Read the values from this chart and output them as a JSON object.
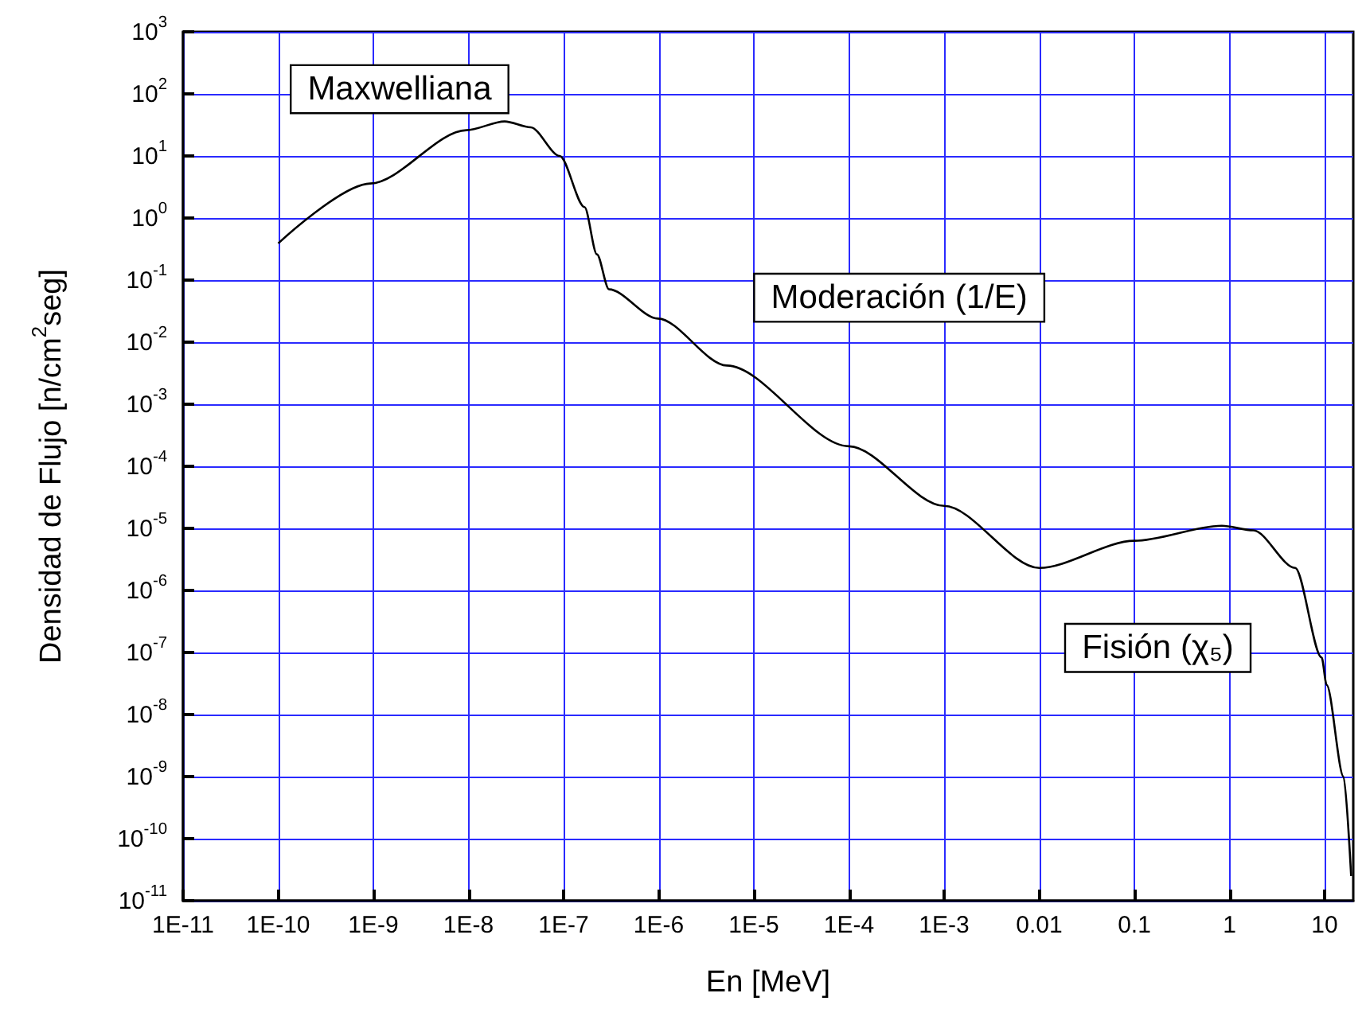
{
  "chart_data": {
    "type": "line",
    "xlabel": "En [MeV]",
    "ylabel": "Densidad de Flujo [n/cm$^{2}$seg]",
    "x": [
      1e-10,
      9.3e-10,
      9.5e-09,
      2.4e-08,
      4.5e-08,
      9.1e-08,
      1.66e-07,
      2.24e-07,
      3e-07,
      9.8e-07,
      5.2e-06,
      0.0001,
      0.001,
      0.01,
      0.1,
      0.83,
      1.78,
      4.9,
      9.3,
      10.5,
      15.8,
      19
    ],
    "series": [
      {
        "color": "#000000",
        "values": [
          0.39,
          3.6,
          26,
          36,
          29,
          10,
          1.5,
          0.26,
          0.071,
          0.024,
          0.0042,
          0.00021,
          2.3e-05,
          2.3e-06,
          6.3e-06,
          1.1e-05,
          9.3e-06,
          2.3e-06,
          8.3e-08,
          3e-08,
          1e-09,
          2.5e-11
        ]
      }
    ],
    "log": "xy",
    "grid": true,
    "marker": "none",
    "line_style": "solid",
    "xlim": [
      1e-11,
      20
    ],
    "ylim": [
      1e-11,
      1000
    ],
    "xticks": [
      {
        "value": 1e-11,
        "label": "1E-11"
      },
      {
        "value": 1e-10,
        "label": "1E-10"
      },
      {
        "value": 1e-09,
        "label": "1E-9"
      },
      {
        "value": 1e-08,
        "label": "1E-8"
      },
      {
        "value": 1e-07,
        "label": "1E-7"
      },
      {
        "value": 1e-06,
        "label": "1E-6"
      },
      {
        "value": 1e-05,
        "label": "1E-5"
      },
      {
        "value": 0.0001,
        "label": "1E-4"
      },
      {
        "value": 0.001,
        "label": "1E-3"
      },
      0.01,
      0.1,
      1,
      10
    ],
    "yticks": [
      {
        "value": 1e-11,
        "label": "10$^{-11}$"
      },
      {
        "value": 1e-10,
        "label": "10$^{-10}$"
      },
      {
        "value": 1e-09,
        "label": "10$^{-9}$"
      },
      {
        "value": 1e-08,
        "label": "10$^{-8}$"
      },
      {
        "value": 1e-07,
        "label": "10$^{-7}$"
      },
      {
        "value": 1e-06,
        "label": "10$^{-6}$"
      },
      {
        "value": 1e-05,
        "label": "10$^{-5}$"
      },
      {
        "value": 0.0001,
        "label": "10$^{-4}$"
      },
      {
        "value": 0.001,
        "label": "10$^{-3}$"
      },
      {
        "value": 0.01,
        "label": "10$^{-2}$"
      },
      {
        "value": 0.1,
        "label": "10$^{-1}$"
      },
      {
        "value": 1,
        "label": "10$^{0}$"
      },
      {
        "value": 10,
        "label": "10$^{1}$"
      },
      {
        "value": 100,
        "label": "10$^{2}$"
      },
      {
        "value": 1000,
        "label": "10$^{3}$"
      }
    ],
    "annotations": [
      "Maxwelliana",
      "Moderación (1/E)",
      "Fisión (χ₅)"
    ]
  }
}
